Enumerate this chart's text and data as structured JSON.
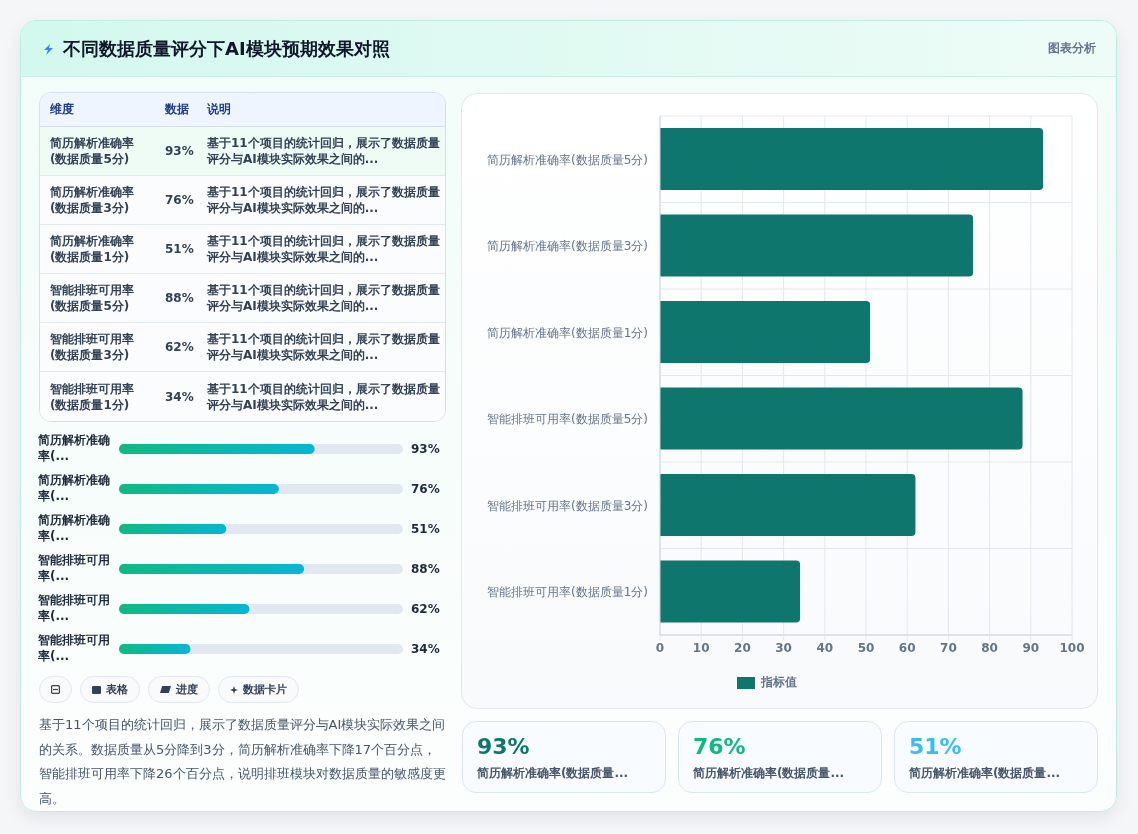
{
  "chart_data": [
    {
      "type": "other",
      "title": "不同数据质量评分下AI模块预期效果对照",
      "categories": [
        "简历解析准确率(数据质量5分)",
        "简历解析准确率(数据质量3分)",
        "简历解析准确率(数据质量1分)",
        "智能排班可用率(数据质量5分)",
        "智能排班可用率(数据质量3分)",
        "智能排班可用率(数据质量1分)"
      ],
      "value_labels": [
        "93%",
        "76%",
        "51%",
        "88%",
        "62%",
        "34%"
      ],
      "annotations": [
        "维度",
        "数据",
        "说明",
        "基于11个项目的统计回归，展示了数据质量评分与AI模块实际效果之间的...",
        "基于11个项目的统计回归，展示了数据质量评分与AI模块实际效果之间的...",
        "基于11个项目的统计回归，展示了数据质量评分与AI模块实际效果之间的...",
        "基于11个项目的统计回归，展示了数据质量评分与AI模块实际效果之间的...",
        "基于11个项目的统计回归，展示了数据质量评分与AI模块实际效果之间的...",
        "基于11个项目的统计回归，展示了数据质量评分与AI模块实际效果之间的..."
      ]
    },
    {
      "type": "bar",
      "orientation": "horizontal",
      "categories": [
        "简历解析准确率(...",
        "简历解析准确率(...",
        "简历解析准确率(...",
        "智能排班可用率(...",
        "智能排班可用率(...",
        "智能排班可用率(..."
      ],
      "values": [
        93,
        76,
        51,
        88,
        62,
        34
      ],
      "value_labels": [
        "93%",
        "76%",
        "51%",
        "88%",
        "62%",
        "34%"
      ],
      "color": "#10b981",
      "xlim": [
        0,
        135
      ],
      "tick_labels": "y",
      "annotations": [
        "表格",
        "进度",
        "数据卡片",
        "基于11个项目的统计回归，展示了数据质量评分与AI模块实际效果之间的关系。数据质量从5分降到3分，简历解析准确率下降17个百分点，智能排班可用率下降26个百分点，说明排班模块对数据质量的敏感度更高。"
      ]
    },
    {
      "type": "bar",
      "orientation": "horizontal",
      "categories": [
        "简历解析准确率(数据质量5分)",
        "简历解析准确率(数据质量3分)",
        "简历解析准确率(数据质量1分)",
        "智能排班可用率(数据质量5分)",
        "智能排班可用率(数据质量3分)",
        "智能排班可用率(数据质量1分)"
      ],
      "series": [
        {
          "name": "指标值",
          "color": "#0f766e",
          "values": [
            93,
            76,
            51,
            88,
            62,
            34
          ]
        }
      ],
      "xlim": [
        0,
        100
      ],
      "xticks": [
        0,
        10,
        20,
        30,
        40,
        50,
        60,
        70,
        80,
        90,
        100
      ],
      "grid": true,
      "legend": "bottom",
      "annotations": [
        "图表分析"
      ]
    },
    {
      "type": "other",
      "categories": [
        "简历解析准确率(数据质量...",
        "简历解析准确率(数据质量...",
        "简历解析准确率(数据质量..."
      ],
      "value_labels": [
        "93%",
        "76%",
        "51%"
      ]
    }
  ]
}
